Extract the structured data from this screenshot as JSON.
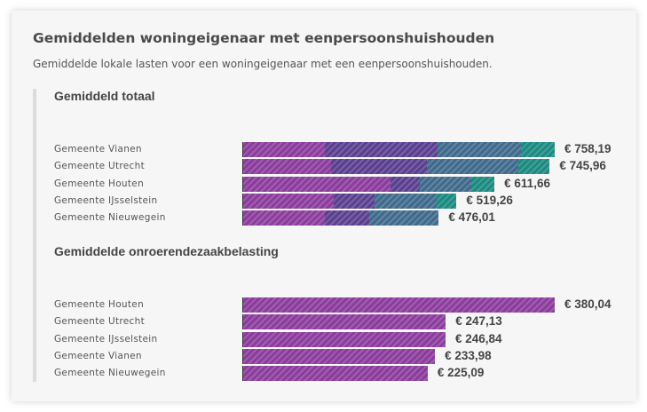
{
  "header": {
    "title": "Gemiddelden woningeigenaar met eenpersoonshuishouden",
    "subtitle": "Gemiddelde lokale lasten voor een woningeigenaar met een eenpersoonshuishouden."
  },
  "colors": [
    "#8b3c9c",
    "#5a3f8f",
    "#3f6a8c",
    "#1b8a80"
  ],
  "chart_data": [
    {
      "type": "bar",
      "stacked": true,
      "orientation": "horizontal",
      "title": "Gemiddeld totaal",
      "categories": [
        "Gemeente Vianen",
        "Gemeente Utrecht",
        "Gemeente Houten",
        "Gemeente IJsselstein",
        "Gemeente Nieuwegein"
      ],
      "totals": [
        "€ 758,19",
        "€ 745,96",
        "€ 611,66",
        "€ 519,26",
        "€ 476,01"
      ],
      "total_values": [
        758.19,
        745.96,
        611.66,
        519.26,
        476.01
      ],
      "segments": [
        [
          198,
          276,
          201,
          83
        ],
        [
          213,
          235,
          221,
          77
        ],
        [
          359,
          71,
          125,
          57
        ],
        [
          220,
          99,
          151,
          49
        ],
        [
          198,
          108,
          170,
          0
        ]
      ]
    },
    {
      "type": "bar",
      "orientation": "horizontal",
      "title": "Gemiddelde onroerendezaakbelasting",
      "categories": [
        "Gemeente Houten",
        "Gemeente Utrecht",
        "Gemeente IJsselstein",
        "Gemeente Vianen",
        "Gemeente Nieuwegein"
      ],
      "labels": [
        "€ 380,04",
        "€ 247,13",
        "€ 246,84",
        "€ 233,98",
        "€ 225,09"
      ],
      "values": [
        380.04,
        247.13,
        246.84,
        233.98,
        225.09
      ]
    }
  ]
}
